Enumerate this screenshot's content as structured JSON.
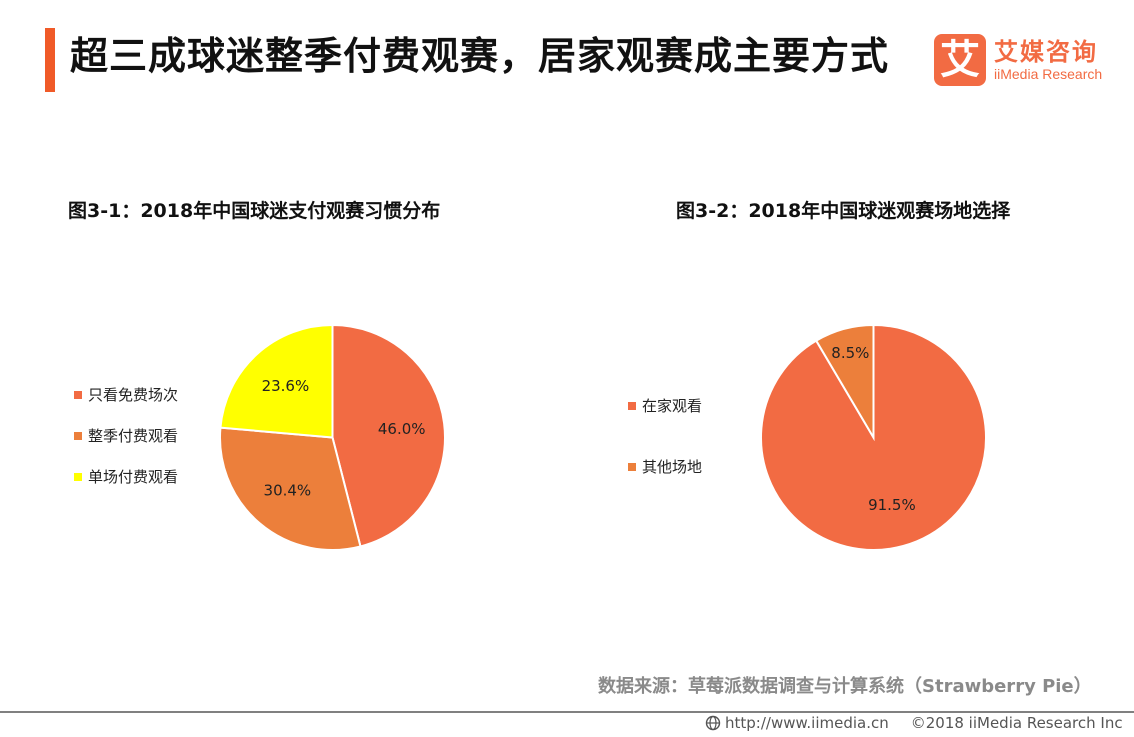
{
  "header": {
    "title": "超三成球迷整季付费观赛，居家观赛成主要方式",
    "accent_color": "#F05A28"
  },
  "logo": {
    "mark": "艾",
    "name_cn": "艾媒咨询",
    "name_en": "iiMedia Research",
    "color": "#F26B43"
  },
  "charts": [
    {
      "title": "图3-1：2018年中国球迷支付观赛习惯分布",
      "legend": [
        {
          "label": "只看免费场次",
          "color": "#F26B43"
        },
        {
          "label": "整季付费观看",
          "color": "#EC7F3B"
        },
        {
          "label": "单场付费观看",
          "color": "#FFFF00"
        }
      ]
    },
    {
      "title": "图3-2：2018年中国球迷观赛场地选择",
      "legend": [
        {
          "label": "在家观看",
          "color": "#F26B43"
        },
        {
          "label": "其他场地",
          "color": "#EC7F3B"
        }
      ]
    }
  ],
  "chart_data": [
    {
      "type": "pie",
      "title": "图3-1：2018年中国球迷支付观赛习惯分布",
      "categories": [
        "只看免费场次",
        "整季付费观看",
        "单场付费观看"
      ],
      "values": [
        46.0,
        30.4,
        23.6
      ],
      "labels": [
        "46.0%",
        "30.4%",
        "23.6%"
      ],
      "colors": [
        "#F26B43",
        "#EC7F3B",
        "#FFFF00"
      ],
      "legend_position": "left",
      "start_angle": "top, clockwise"
    },
    {
      "type": "pie",
      "title": "图3-2：2018年中国球迷观赛场地选择",
      "categories": [
        "在家观看",
        "其他场地"
      ],
      "values": [
        91.5,
        8.5
      ],
      "labels": [
        "91.5%",
        "8.5%"
      ],
      "colors": [
        "#F26B43",
        "#EC7F3B"
      ],
      "legend_position": "left",
      "start_angle": "top, clockwise"
    }
  ],
  "footer": {
    "source": "数据来源：草莓派数据调查与计算系统（Strawberry Pie）",
    "url": "http://www.iimedia.cn",
    "copyright": "©2018  iiMedia Research  Inc"
  }
}
